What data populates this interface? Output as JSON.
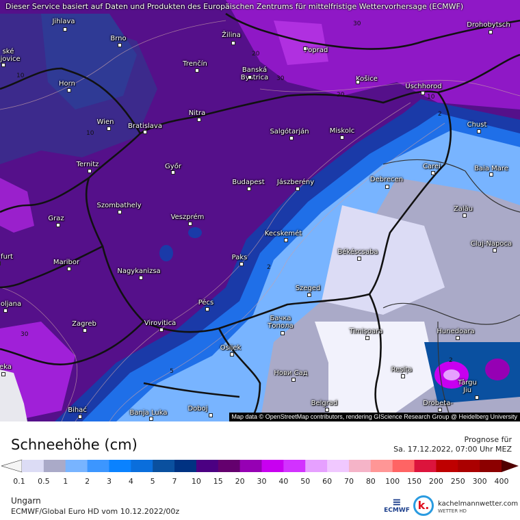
{
  "map": {
    "service_notice": "Dieser Service basiert auf Daten und Produkten des Europäischen Zentrums für mittelfristige Wettervorhersage (ECMWF)",
    "attribution": "Map data © OpenStreetMap contributors, rendering GIScience Research Group @ Heidelberg University",
    "cities": [
      {
        "name": "Jihlava"
      },
      {
        "name": "Brno"
      },
      {
        "name": "Žilina"
      },
      {
        "name": "Poprad"
      },
      {
        "name": "Drohobytsch"
      },
      {
        "name": "ské\nějovice"
      },
      {
        "name": "Trenčín"
      },
      {
        "name": "Banská\nBystrica"
      },
      {
        "name": "Košice"
      },
      {
        "name": "Horn"
      },
      {
        "name": "Uschhorod"
      },
      {
        "name": "Wien"
      },
      {
        "name": "Bratislava"
      },
      {
        "name": "Nitra"
      },
      {
        "name": "Salgótarján"
      },
      {
        "name": "Miskolc"
      },
      {
        "name": "Chust"
      },
      {
        "name": "Ternitz"
      },
      {
        "name": "Győr"
      },
      {
        "name": "Carei"
      },
      {
        "name": "Baia Mare"
      },
      {
        "name": "Budapest"
      },
      {
        "name": "Jászberény"
      },
      {
        "name": "Debrecen"
      },
      {
        "name": "Szombathely"
      },
      {
        "name": "Graz"
      },
      {
        "name": "Veszprém"
      },
      {
        "name": "Zalău"
      },
      {
        "name": "Kecskemét"
      },
      {
        "name": "Cluj-Napoca"
      },
      {
        "name": "Békéscsaba"
      },
      {
        "name": "Paks"
      },
      {
        "name": "Maribor"
      },
      {
        "name": "furt"
      },
      {
        "name": "Nagykanizsa"
      },
      {
        "name": "Szeged"
      },
      {
        "name": "oljana"
      },
      {
        "name": "Pécs"
      },
      {
        "name": "Бачка\nТопола"
      },
      {
        "name": "Zagreb"
      },
      {
        "name": "Virovitica"
      },
      {
        "name": "Timișoara"
      },
      {
        "name": "Hunedoara"
      },
      {
        "name": "Osijek"
      },
      {
        "name": "Нови Сад"
      },
      {
        "name": "Reșița"
      },
      {
        "name": "eka"
      },
      {
        "name": "Târgu\nJiu"
      },
      {
        "name": "Bihać"
      },
      {
        "name": "Banja Luka"
      },
      {
        "name": "Doboj"
      },
      {
        "name": "Belgrad"
      },
      {
        "name": "Drobeta-"
      }
    ],
    "contour_labels": [
      "30",
      "20",
      "30",
      "20",
      "10",
      "10",
      "10",
      "2",
      "2",
      "5",
      "30",
      "2"
    ]
  },
  "header": {
    "title": "Schneehöhe (cm)",
    "forecast_label": "Prognose für",
    "forecast_time": "Sa. 17.12.2022, 07:00 Uhr MEZ"
  },
  "legend": {
    "labels": [
      "0.1",
      "0.5",
      "1",
      "2",
      "3",
      "4",
      "5",
      "7",
      "10",
      "15",
      "20",
      "30",
      "40",
      "50",
      "60",
      "70",
      "80",
      "100",
      "150",
      "200",
      "250",
      "300",
      "400"
    ],
    "colors": [
      "#dcdcf5",
      "#aaaac8",
      "#78b4ff",
      "#3c96ff",
      "#0a82ff",
      "#0a6edc",
      "#0a509f",
      "#003282",
      "#4b0082",
      "#64006e",
      "#9600b4",
      "#c800f0",
      "#d232ff",
      "#e6a0ff",
      "#f0c8ff",
      "#f5b4c8",
      "#ff9696",
      "#ff6464",
      "#dc143c",
      "#be0000",
      "#aa0000",
      "#8c0000"
    ],
    "under_color": "#f5f5f5",
    "over_color": "#500000"
  },
  "footer": {
    "region": "Ungarn",
    "model_run": "ECMWF/Global Euro HD vom  10.12.2022/00z",
    "ecmwf_logo": "ECMWF",
    "brand_name": "kachelmannwetter.com",
    "brand_sub": "WETTER HD",
    "brand_logo": "k."
  }
}
